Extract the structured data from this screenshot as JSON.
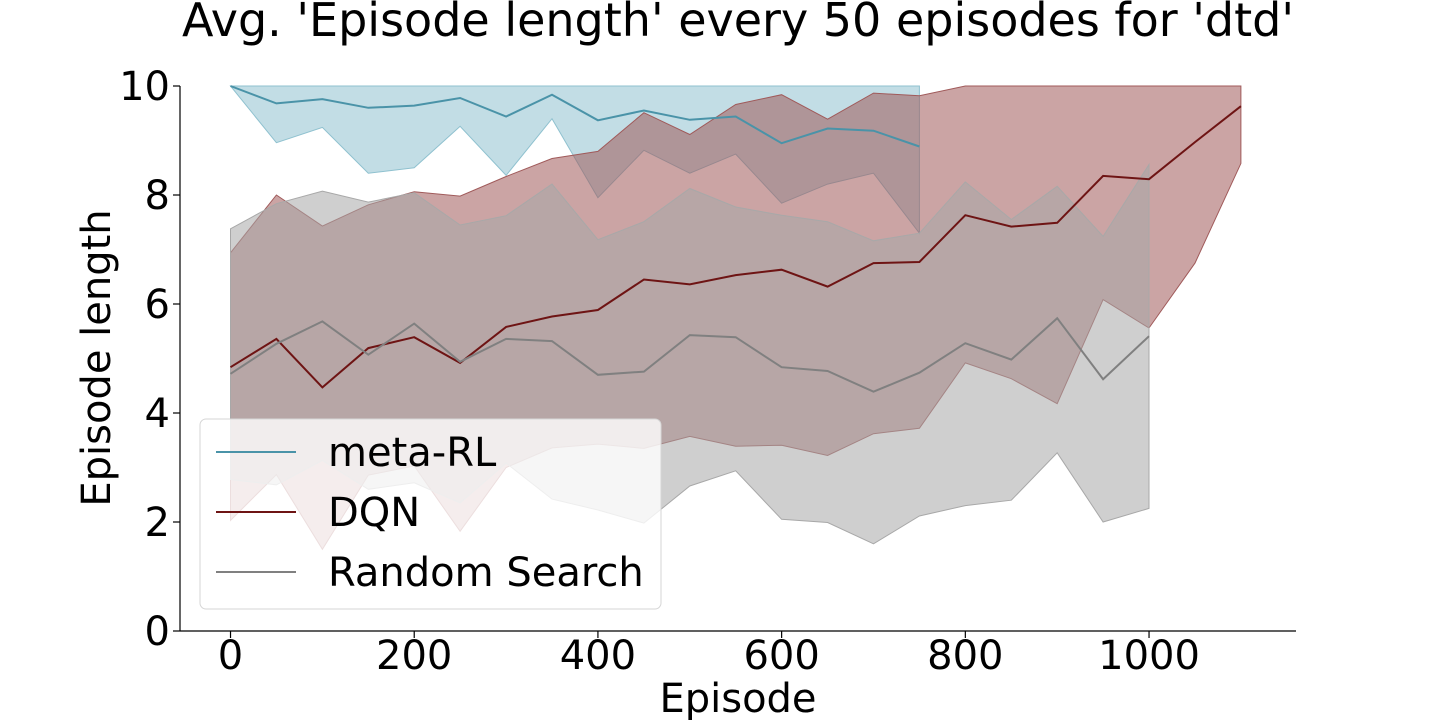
{
  "chart_data": {
    "type": "line",
    "title": "Avg. 'Episode length' every 50 episodes for 'dtd'",
    "xlabel": "Episode",
    "ylabel": "Episode length",
    "xlim": [
      -55,
      1160
    ],
    "ylim": [
      0,
      10
    ],
    "xticks": [
      0,
      200,
      400,
      600,
      800,
      1000
    ],
    "yticks": [
      0,
      2,
      4,
      6,
      8,
      10
    ],
    "grid": false,
    "legend_position": "lower-left",
    "series": [
      {
        "name": "meta-RL",
        "color": "#4a93a8",
        "fill_color": "#8fc1cf",
        "x": [
          0,
          50,
          100,
          150,
          200,
          250,
          300,
          350,
          400,
          450,
          500,
          550,
          600,
          650,
          700,
          750
        ],
        "mean": [
          10.0,
          9.68,
          9.76,
          9.6,
          9.64,
          9.78,
          9.44,
          9.84,
          9.37,
          9.55,
          9.38,
          9.44,
          8.95,
          9.22,
          9.18,
          8.89
        ],
        "lower": [
          10.0,
          8.96,
          9.24,
          8.4,
          8.5,
          9.26,
          8.36,
          9.4,
          7.95,
          8.82,
          8.4,
          8.75,
          7.85,
          8.2,
          8.4,
          7.3
        ],
        "upper": [
          10.0,
          10.0,
          10.0,
          10.0,
          10.0,
          10.0,
          10.0,
          10.0,
          10.0,
          10.0,
          10.0,
          10.0,
          10.0,
          10.0,
          10.0,
          10.0
        ]
      },
      {
        "name": "DQN",
        "color": "#6e1414",
        "fill_color": "#a05a5a",
        "x": [
          0,
          50,
          100,
          150,
          200,
          250,
          300,
          350,
          400,
          450,
          500,
          550,
          600,
          650,
          700,
          750,
          800,
          850,
          900,
          950,
          1000,
          1050,
          1100
        ],
        "mean": [
          4.84,
          5.36,
          4.47,
          5.19,
          5.39,
          4.92,
          5.58,
          5.77,
          5.89,
          6.45,
          6.36,
          6.53,
          6.63,
          6.32,
          6.75,
          6.77,
          7.63,
          7.42,
          7.49,
          8.35,
          8.29,
          8.97,
          9.63
        ],
        "lower": [
          2.03,
          2.87,
          1.5,
          2.86,
          3.03,
          1.83,
          3.0,
          3.36,
          3.43,
          3.35,
          3.57,
          3.39,
          3.41,
          3.22,
          3.62,
          3.72,
          4.92,
          4.63,
          4.17,
          6.08,
          5.56,
          6.75,
          8.58
        ],
        "upper": [
          6.94,
          8.0,
          7.43,
          7.82,
          8.06,
          7.98,
          8.34,
          8.67,
          8.8,
          9.51,
          9.11,
          9.66,
          9.84,
          9.39,
          9.87,
          9.82,
          10.0,
          10.0,
          10.0,
          10.0,
          10.0,
          10.0,
          10.0
        ]
      },
      {
        "name": "Random Search",
        "color": "#808080",
        "fill_color": "#a8a8a8",
        "x": [
          0,
          50,
          100,
          150,
          200,
          250,
          300,
          350,
          400,
          450,
          500,
          550,
          600,
          650,
          700,
          750,
          800,
          850,
          900,
          950,
          1000
        ],
        "mean": [
          4.72,
          5.27,
          5.68,
          5.07,
          5.64,
          4.94,
          5.36,
          5.32,
          4.7,
          4.76,
          5.43,
          5.39,
          4.84,
          4.77,
          4.39,
          4.74,
          5.28,
          4.98,
          5.74,
          4.62,
          5.41
        ],
        "lower": [
          2.78,
          2.68,
          3.13,
          2.6,
          2.72,
          2.35,
          3.08,
          2.42,
          2.22,
          1.98,
          2.66,
          2.94,
          2.05,
          1.99,
          1.6,
          2.11,
          2.3,
          2.4,
          3.27,
          2.0,
          2.25
        ],
        "upper": [
          7.38,
          7.84,
          8.07,
          7.87,
          8.04,
          7.45,
          7.62,
          8.2,
          7.18,
          7.51,
          8.12,
          7.78,
          7.63,
          7.51,
          7.16,
          7.3,
          8.24,
          7.55,
          8.16,
          7.24,
          8.56
        ]
      }
    ]
  }
}
